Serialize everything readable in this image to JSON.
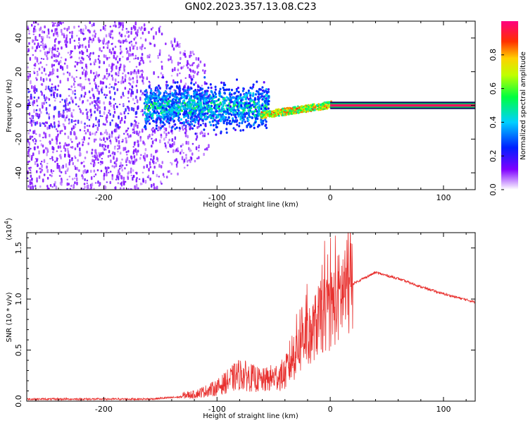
{
  "title": "GN02.2023.357.13.08.C23",
  "chart_data": [
    {
      "type": "heatmap",
      "xlabel": "Height of straight line (km)",
      "ylabel": "Frequency (Hz)",
      "xlim": [
        -268,
        128
      ],
      "ylim": [
        -50,
        50
      ],
      "x_ticks": [
        -200,
        -100,
        0,
        100
      ],
      "x_tick_labels": [
        "-200",
        "-100",
        "0",
        "100"
      ],
      "y_ticks": [
        -40,
        -20,
        0,
        20,
        40
      ],
      "y_tick_labels": [
        "-40",
        "-20",
        "0",
        "20",
        "40"
      ],
      "colorbar": {
        "label": "Normalized spectral amplitude",
        "ticks": [
          0.0,
          0.2,
          0.4,
          0.6,
          0.8
        ],
        "tick_labels": [
          "0.0",
          "0.2",
          "0.4",
          "0.6",
          "0.8"
        ],
        "range": [
          0,
          1
        ],
        "colormap": "rainbow"
      },
      "signal_regions": [
        {
          "x_range": [
            -268,
            -165
          ],
          "freq_spread": 50,
          "amplitude": 0.1
        },
        {
          "x_range": [
            -165,
            -60
          ],
          "freq_spread": 12,
          "amplitude": 0.35
        },
        {
          "x_range": [
            -60,
            0
          ],
          "freq_center_start": -5,
          "freq_center_end": 2,
          "amplitude": 0.75
        },
        {
          "x_range": [
            0,
            128
          ],
          "freq": 0,
          "amplitude": 0.95
        }
      ],
      "grid": false
    },
    {
      "type": "line",
      "xlabel": "Height of straight line (km)",
      "ylabel": "SNR (10 * v/v)",
      "y_multiplier": "(x10^4)",
      "xlim": [
        -268,
        128
      ],
      "ylim": [
        0,
        1.65
      ],
      "x_ticks": [
        -200,
        -100,
        0,
        100
      ],
      "x_tick_labels": [
        "-200",
        "-100",
        "0",
        "100"
      ],
      "y_ticks": [
        0.0,
        0.5,
        1.0,
        1.5
      ],
      "y_tick_labels": [
        "0.0",
        "0.5",
        "1.0",
        "1.5"
      ],
      "color": "#e8302e",
      "grid": false,
      "envelope": [
        {
          "x": -268,
          "y": 0.02
        },
        {
          "x": -160,
          "y": 0.02
        },
        {
          "x": -120,
          "y": 0.05
        },
        {
          "x": -100,
          "y": 0.1
        },
        {
          "x": -80,
          "y": 0.2
        },
        {
          "x": -60,
          "y": 0.15
        },
        {
          "x": -40,
          "y": 0.2
        },
        {
          "x": -20,
          "y": 0.6
        },
        {
          "x": -10,
          "y": 0.8
        },
        {
          "x": 0,
          "y": 0.9
        },
        {
          "x": 10,
          "y": 1.05
        },
        {
          "x": 20,
          "y": 1.15
        },
        {
          "x": 40,
          "y": 1.26
        },
        {
          "x": 60,
          "y": 1.2
        },
        {
          "x": 80,
          "y": 1.12
        },
        {
          "x": 100,
          "y": 1.05
        },
        {
          "x": 128,
          "y": 0.97
        }
      ]
    }
  ]
}
